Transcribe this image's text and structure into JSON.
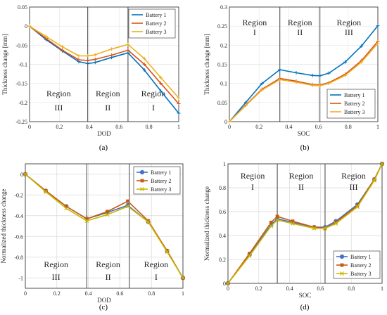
{
  "chart_data": [
    {
      "type": "line",
      "panel": "(a)",
      "xlabel": "DOD",
      "ylabel": "Thickness change [mm]",
      "xlim": [
        0,
        1
      ],
      "ylim": [
        -0.25,
        0.05
      ],
      "xticks": [
        "0",
        "0.2",
        "0.4",
        "0.6",
        "0.8",
        "1"
      ],
      "yticks": [
        "0.05",
        "0",
        "-0.05",
        "-0.1",
        "-0.15",
        "-0.2",
        "-0.25"
      ],
      "legend_position": "top-right",
      "markers": "plus",
      "region_lines": [
        0.39,
        0.66
      ],
      "regions": [
        {
          "line1": "Region",
          "line2": "III"
        },
        {
          "line1": "Region",
          "line2": "II"
        },
        {
          "line1": "Region",
          "line2": "I"
        }
      ],
      "series": [
        {
          "name": "Battery 1",
          "color": "#0072BD",
          "x": [
            0,
            0.11,
            0.22,
            0.33,
            0.39,
            0.44,
            0.55,
            0.66,
            0.77,
            0.88,
            1.0
          ],
          "y": [
            0,
            -0.035,
            -0.065,
            -0.093,
            -0.098,
            -0.095,
            -0.082,
            -0.07,
            -0.115,
            -0.17,
            -0.228
          ]
        },
        {
          "name": "Battery 2",
          "color": "#D95319",
          "x": [
            0,
            0.11,
            0.22,
            0.33,
            0.39,
            0.44,
            0.55,
            0.66,
            0.77,
            0.88,
            1.0
          ],
          "y": [
            0,
            -0.032,
            -0.063,
            -0.088,
            -0.09,
            -0.087,
            -0.076,
            -0.063,
            -0.1,
            -0.15,
            -0.203
          ]
        },
        {
          "name": "Battery 3",
          "color": "#EDB120",
          "x": [
            0,
            0.11,
            0.22,
            0.33,
            0.39,
            0.44,
            0.55,
            0.66,
            0.77,
            0.88,
            1.0
          ],
          "y": [
            0,
            -0.027,
            -0.054,
            -0.078,
            -0.078,
            -0.075,
            -0.06,
            -0.048,
            -0.085,
            -0.135,
            -0.188
          ]
        }
      ]
    },
    {
      "type": "line",
      "panel": "(b)",
      "xlabel": "SOC",
      "ylabel": "Thickness change [mm]",
      "xlim": [
        0,
        1
      ],
      "ylim": [
        0,
        0.3
      ],
      "xticks": [
        "0",
        "0.2",
        "0.4",
        "0.6",
        "0.8",
        "1"
      ],
      "yticks": [
        "0.3",
        "0.25",
        "0.2",
        "0.15",
        "0.1",
        "0.05",
        "0"
      ],
      "legend_position": "bottom-right",
      "markers": "plus",
      "region_lines": [
        0.34,
        0.61
      ],
      "regions": [
        {
          "line1": "Region",
          "line2": "I"
        },
        {
          "line1": "Region",
          "line2": "II"
        },
        {
          "line1": "Region",
          "line2": "III"
        }
      ],
      "series": [
        {
          "name": "Battery 1",
          "color": "#0072BD",
          "x": [
            0,
            0.11,
            0.22,
            0.34,
            0.45,
            0.56,
            0.61,
            0.67,
            0.78,
            0.89,
            1.0
          ],
          "y": [
            0,
            0.05,
            0.1,
            0.136,
            0.128,
            0.121,
            0.12,
            0.127,
            0.156,
            0.198,
            0.251
          ]
        },
        {
          "name": "Battery 2",
          "color": "#D95319",
          "x": [
            0,
            0.11,
            0.22,
            0.34,
            0.45,
            0.56,
            0.61,
            0.67,
            0.78,
            0.89,
            1.0
          ],
          "y": [
            0,
            0.043,
            0.085,
            0.113,
            0.106,
            0.097,
            0.096,
            0.102,
            0.124,
            0.16,
            0.21
          ]
        },
        {
          "name": "Battery 3",
          "color": "#EDB120",
          "x": [
            0,
            0.11,
            0.22,
            0.34,
            0.45,
            0.56,
            0.61,
            0.67,
            0.78,
            0.89,
            1.0
          ],
          "y": [
            0,
            0.042,
            0.083,
            0.11,
            0.103,
            0.095,
            0.094,
            0.1,
            0.121,
            0.156,
            0.205
          ]
        }
      ]
    },
    {
      "type": "line",
      "panel": "(c)",
      "xlabel": "DOD",
      "ylabel": "Normalized thickness change",
      "xlim": [
        0,
        1
      ],
      "ylim": [
        -1.1,
        0.1
      ],
      "xticks": [
        "0",
        "0.2",
        "0.4",
        "0.6",
        "0.8",
        "1"
      ],
      "yticks": [
        "0",
        "-0.2",
        "-0.4",
        "-0.6",
        "-0.8",
        "-1"
      ],
      "legend_position": "top-right",
      "markers": "circle/square/x",
      "region_lines": [
        0.39,
        0.66
      ],
      "regions": [
        {
          "line1": "Region",
          "line2": "III"
        },
        {
          "line1": "Region",
          "line2": "II"
        },
        {
          "line1": "Region",
          "line2": "I"
        }
      ],
      "series": [
        {
          "name": "Battery 1",
          "color": "#4472C4",
          "x": [
            0,
            0.13,
            0.26,
            0.39,
            0.52,
            0.65,
            0.78,
            0.9,
            1.0
          ],
          "y": [
            0,
            -0.16,
            -0.31,
            -0.43,
            -0.37,
            -0.3,
            -0.46,
            -0.74,
            -1.0
          ]
        },
        {
          "name": "Battery 2",
          "color": "#C55A11",
          "x": [
            0,
            0.13,
            0.26,
            0.39,
            0.52,
            0.65,
            0.78,
            0.9,
            1.0
          ],
          "y": [
            0,
            -0.16,
            -0.31,
            -0.43,
            -0.36,
            -0.26,
            -0.45,
            -0.74,
            -1.0
          ]
        },
        {
          "name": "Battery 3",
          "color": "#C9B700",
          "x": [
            0,
            0.13,
            0.26,
            0.39,
            0.52,
            0.65,
            0.78,
            0.9,
            1.0
          ],
          "y": [
            0,
            -0.17,
            -0.33,
            -0.45,
            -0.39,
            -0.31,
            -0.46,
            -0.75,
            -1.0
          ]
        }
      ]
    },
    {
      "type": "line",
      "panel": "(d)",
      "xlabel": "SOC",
      "ylabel": "Normalized thickness change",
      "xlim": [
        0,
        1
      ],
      "ylim": [
        0,
        1
      ],
      "xticks": [
        "0",
        "0.2",
        "0.4",
        "0.6",
        "0.8",
        "1"
      ],
      "yticks": [
        "1",
        "0.8",
        "0.6",
        "0.4",
        "0.2",
        "0"
      ],
      "legend_position": "bottom-right",
      "markers": "circle/square/x",
      "region_lines": [
        0.32,
        0.63
      ],
      "regions": [
        {
          "line1": "Region",
          "line2": "I"
        },
        {
          "line1": "Region",
          "line2": "II"
        },
        {
          "line1": "Region",
          "line2": "III"
        }
      ],
      "series": [
        {
          "name": "Battery 1",
          "color": "#4472C4",
          "x": [
            0,
            0.14,
            0.28,
            0.32,
            0.42,
            0.56,
            0.63,
            0.7,
            0.84,
            0.95,
            1.0
          ],
          "y": [
            0,
            0.24,
            0.49,
            0.54,
            0.51,
            0.47,
            0.47,
            0.52,
            0.66,
            0.87,
            1.0
          ]
        },
        {
          "name": "Battery 2",
          "color": "#C55A11",
          "x": [
            0,
            0.14,
            0.28,
            0.32,
            0.42,
            0.56,
            0.63,
            0.7,
            0.84,
            0.95,
            1.0
          ],
          "y": [
            0,
            0.25,
            0.51,
            0.56,
            0.52,
            0.47,
            0.46,
            0.51,
            0.65,
            0.87,
            1.0
          ]
        },
        {
          "name": "Battery 3",
          "color": "#C9B700",
          "x": [
            0,
            0.14,
            0.28,
            0.32,
            0.42,
            0.56,
            0.63,
            0.7,
            0.84,
            0.95,
            1.0
          ],
          "y": [
            0,
            0.23,
            0.48,
            0.53,
            0.5,
            0.46,
            0.46,
            0.5,
            0.64,
            0.86,
            1.0
          ]
        }
      ]
    }
  ]
}
